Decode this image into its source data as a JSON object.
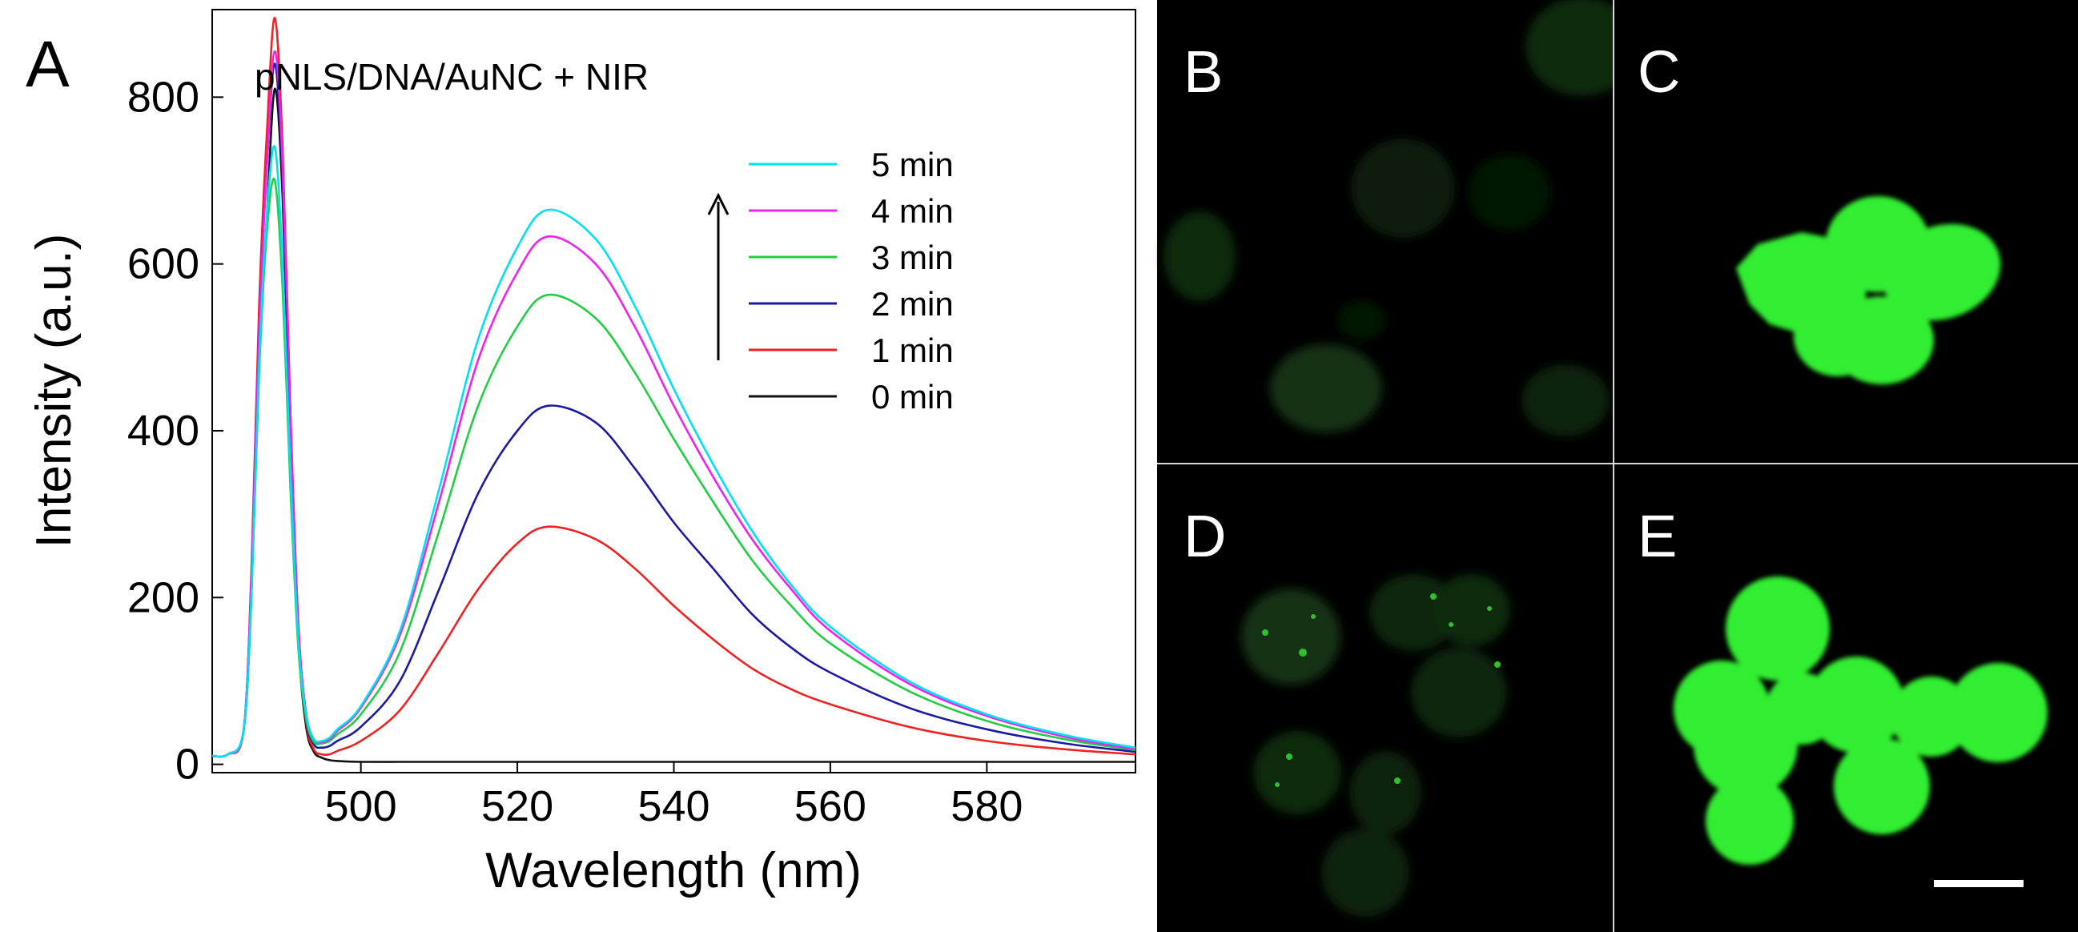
{
  "panels": {
    "A": "A",
    "B": "B",
    "C": "C",
    "D": "D",
    "E": "E"
  },
  "colors": {
    "background": "#ffffff",
    "micrograph_bg": "#000000",
    "fluorescence": "#33ee33",
    "divider": "#d8d8d8",
    "scale_bar": "#ffffff"
  },
  "chart_data": {
    "type": "line",
    "title": "pNLS/DNA/AuNC + NIR",
    "xlabel": "Wavelength (nm)",
    "ylabel": "Intensity (a.u.)",
    "xlim": [
      481,
      599
    ],
    "ylim": [
      -10,
      905
    ],
    "xticks": [
      500,
      520,
      540,
      560,
      580
    ],
    "yticks": [
      0,
      200,
      400,
      600,
      800
    ],
    "grid": false,
    "legend": {
      "position": "top-right",
      "arrow": "up"
    },
    "x": [
      481,
      483,
      485,
      486,
      487,
      488,
      489,
      490,
      491,
      492,
      493,
      494,
      495,
      496,
      497,
      500,
      505,
      510,
      515,
      520,
      524,
      530,
      535,
      540,
      545,
      550,
      555,
      560,
      570,
      580,
      590,
      599
    ],
    "series": [
      {
        "name": "5 min",
        "color": "#00e0f0",
        "values": [
          10,
          12,
          40,
          200,
          480,
          660,
          740,
          600,
          350,
          150,
          60,
          30,
          28,
          32,
          42,
          70,
          160,
          330,
          510,
          620,
          665,
          630,
          550,
          450,
          360,
          280,
          215,
          165,
          100,
          60,
          35,
          20
        ]
      },
      {
        "name": "4 min",
        "color": "#ee22ee",
        "values": [
          10,
          12,
          40,
          220,
          520,
          720,
          855,
          720,
          420,
          170,
          62,
          30,
          27,
          30,
          40,
          68,
          155,
          315,
          485,
          590,
          633,
          600,
          525,
          430,
          345,
          270,
          210,
          160,
          97,
          58,
          33,
          18
        ]
      },
      {
        "name": "3 min",
        "color": "#22cc44",
        "values": [
          10,
          12,
          40,
          200,
          470,
          640,
          700,
          570,
          330,
          140,
          55,
          27,
          25,
          28,
          36,
          60,
          135,
          280,
          430,
          525,
          563,
          535,
          470,
          390,
          315,
          245,
          190,
          145,
          88,
          52,
          30,
          17
        ]
      },
      {
        "name": "2 min",
        "color": "#1a1aa0",
        "values": [
          10,
          12,
          40,
          220,
          520,
          720,
          840,
          700,
          400,
          160,
          55,
          24,
          20,
          22,
          28,
          45,
          100,
          210,
          325,
          400,
          430,
          410,
          355,
          290,
          235,
          180,
          140,
          110,
          68,
          42,
          25,
          15
        ]
      },
      {
        "name": "1 min",
        "color": "#ee2222",
        "values": [
          10,
          12,
          40,
          230,
          550,
          760,
          895,
          740,
          420,
          170,
          52,
          18,
          12,
          12,
          16,
          28,
          65,
          135,
          210,
          265,
          285,
          270,
          235,
          190,
          150,
          115,
          90,
          72,
          45,
          28,
          18,
          12
        ]
      },
      {
        "name": "0 min",
        "color": "#111111",
        "values": [
          10,
          12,
          40,
          200,
          480,
          660,
          810,
          680,
          390,
          150,
          45,
          15,
          8,
          5,
          4,
          3,
          3,
          3,
          3,
          3,
          3,
          3,
          3,
          3,
          3,
          3,
          3,
          3,
          3,
          3,
          3,
          3
        ]
      }
    ]
  }
}
